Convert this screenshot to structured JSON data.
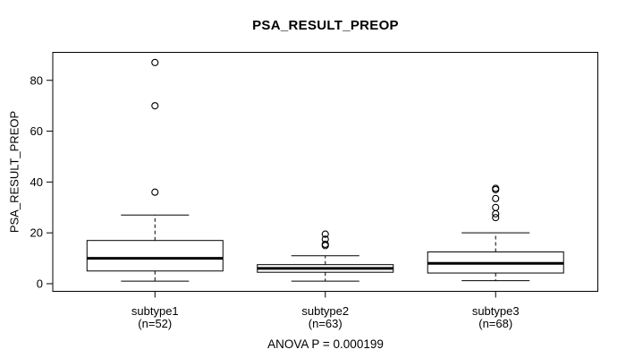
{
  "chart_data": {
    "type": "boxplot",
    "title": "PSA_RESULT_PREOP",
    "ylabel": "PSA_RESULT_PREOP",
    "footer": "ANOVA P = 0.000199",
    "yticks": [
      0,
      20,
      40,
      60,
      80
    ],
    "ylim": [
      -3,
      91
    ],
    "grid": false,
    "legend": null,
    "groups": [
      {
        "label": "subtype1",
        "sublabel": "(n=52)",
        "n": 52,
        "whisker_low": 1,
        "q1": 5,
        "median": 10,
        "q3": 17,
        "whisker_high": 27,
        "outliers": [
          36,
          70,
          87
        ]
      },
      {
        "label": "subtype2",
        "sublabel": "(n=63)",
        "n": 63,
        "whisker_low": 1,
        "q1": 4.5,
        "median": 6,
        "q3": 7.5,
        "whisker_high": 11,
        "outliers": [
          15,
          15.5,
          17.5,
          19.5
        ]
      },
      {
        "label": "subtype3",
        "sublabel": "(n=68)",
        "n": 68,
        "whisker_low": 1.2,
        "q1": 4.2,
        "median": 8,
        "q3": 12.5,
        "whisker_high": 20,
        "outliers": [
          26,
          27.5,
          30,
          33.5,
          37,
          37.5
        ]
      }
    ]
  }
}
